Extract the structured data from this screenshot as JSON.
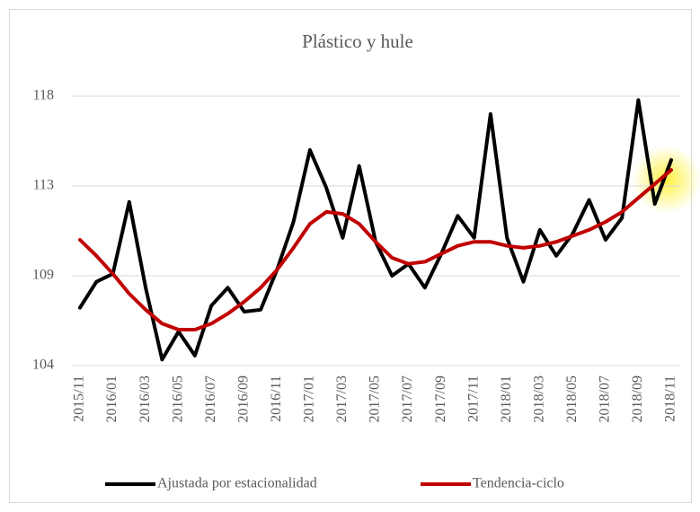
{
  "chart_data": {
    "type": "line",
    "title": "Plástico y hule",
    "categories": [
      "2015/11",
      null,
      "2016/01",
      null,
      "2016/03",
      null,
      "2016/05",
      null,
      "2016/07",
      null,
      "2016/09",
      null,
      "2016/11",
      null,
      "2017/01",
      null,
      "2017/03",
      null,
      "2017/05",
      null,
      "2017/07",
      null,
      "2017/09",
      null,
      "2017/11",
      null,
      "2018/01",
      null,
      "2018/03",
      null,
      "2018/05",
      null,
      "2018/07",
      null,
      "2018/09",
      null,
      "2018/11"
    ],
    "series": [
      {
        "name": "Ajustada por estacionalidad",
        "color": "#000000",
        "values": [
          106.9,
          108.2,
          108.6,
          112.2,
          107.9,
          104.3,
          105.7,
          104.5,
          107.0,
          107.9,
          106.7,
          106.8,
          108.8,
          111.2,
          114.8,
          112.9,
          110.4,
          114.0,
          110.2,
          108.5,
          109.1,
          107.9,
          109.6,
          111.5,
          110.4,
          116.6,
          110.4,
          108.2,
          110.8,
          109.5,
          110.6,
          112.3,
          110.3,
          111.4,
          117.3,
          112.1,
          114.3
        ]
      },
      {
        "name": "Tendencia-ciclo",
        "color": "#c00000",
        "values": [
          110.3,
          109.5,
          108.6,
          107.6,
          106.8,
          106.1,
          105.8,
          105.8,
          106.1,
          106.6,
          107.2,
          107.9,
          108.8,
          109.9,
          111.1,
          111.7,
          111.6,
          111.1,
          110.2,
          109.4,
          109.1,
          109.2,
          109.6,
          110.0,
          110.2,
          110.2,
          110.0,
          109.9,
          110.0,
          110.2,
          110.5,
          110.8,
          111.2,
          111.7,
          112.4,
          113.1,
          113.8
        ]
      }
    ],
    "ylim": [
      104,
      117.5
    ],
    "yticks": [
      104,
      {
        "value": 108.5,
        "label": "109"
      },
      113,
      {
        "value": 117.5,
        "label": "118"
      }
    ],
    "grid": true,
    "legend": "bottom"
  }
}
